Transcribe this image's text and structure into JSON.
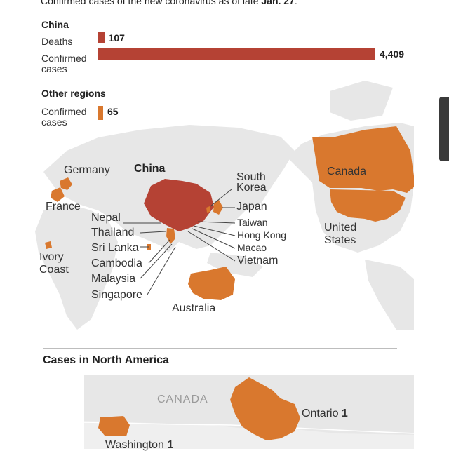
{
  "header": {
    "subtitle_prefix": "Confirmed cases of the new coronavirus as of late",
    "subtitle_date": "Jan. 27",
    "subtitle_suffix": "."
  },
  "colors": {
    "dark_red": "#b54234",
    "orange": "#d9782e",
    "land": "#e7e7e7"
  },
  "chart_data": [
    {
      "type": "bar",
      "title": "China",
      "categories": [
        "Deaths",
        "Confirmed cases"
      ],
      "values": [
        107,
        4409
      ],
      "value_labels": [
        "107",
        "4,409"
      ]
    },
    {
      "type": "bar",
      "title": "Other regions",
      "categories": [
        "Confirmed cases"
      ],
      "values": [
        65
      ],
      "value_labels": [
        "65"
      ]
    }
  ],
  "map": {
    "regions": {
      "germany": "Germany",
      "china": "China",
      "south_korea": "South Korea",
      "canada": "Canada",
      "france": "France",
      "japan": "Japan",
      "nepal": "Nepal",
      "taiwan": "Taiwan",
      "thailand": "Thailand",
      "hong_kong": "Hong Kong",
      "united_states": "United States",
      "sri_lanka": "Sri Lanka",
      "macao": "Macao",
      "ivory_coast": "Ivory Coast",
      "cambodia": "Cambodia",
      "vietnam": "Vietnam",
      "malaysia": "Malaysia",
      "singapore": "Singapore",
      "australia": "Australia"
    }
  },
  "north_america": {
    "title": "Cases in North America",
    "canada_label": "CANADA",
    "ontario_name": "Ontario",
    "ontario_count": "1",
    "washington_name": "Washington",
    "washington_count": "1"
  }
}
